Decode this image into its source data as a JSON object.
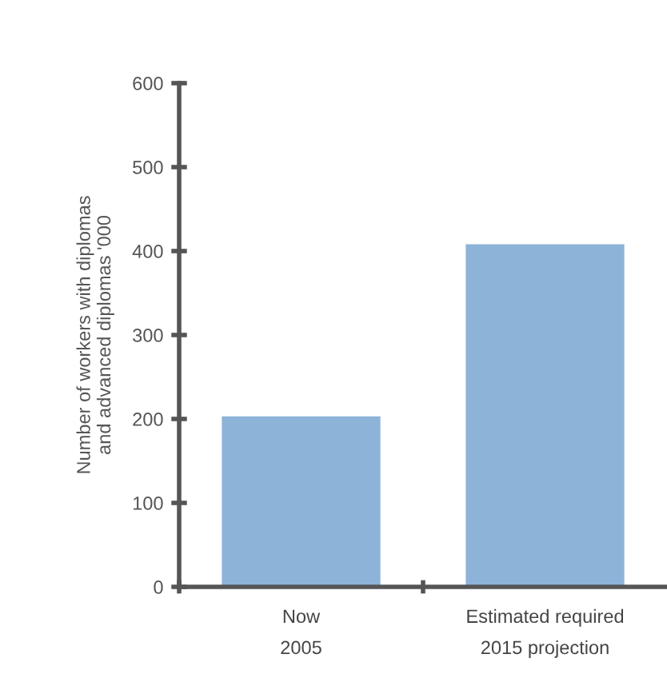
{
  "chart_data": {
    "type": "bar",
    "ylabel": "Number of workers with diplomas\nand advanced diplomas '000",
    "categories": [
      "Now\n2005",
      "Estimated required\n2015 projection"
    ],
    "values": [
      203,
      408
    ],
    "color": "#8db3d9",
    "ylim": [
      0,
      600
    ],
    "yticks": [
      0,
      100,
      200,
      300,
      400,
      500,
      600
    ],
    "grid": false
  }
}
